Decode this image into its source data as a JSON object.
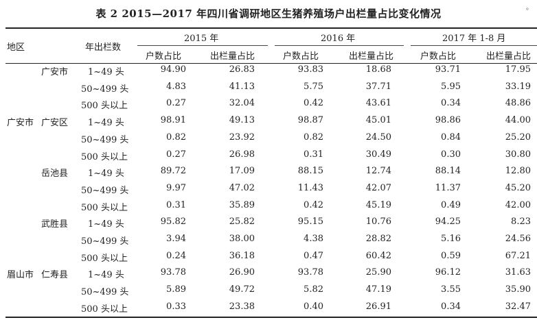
{
  "title": "表 2  2015—2017 年四川省调研地区生猪养殖场户出栏量占比变化情况",
  "corner_mark": "。",
  "headers": {
    "region": "地区",
    "scale": "年出栏数",
    "year2015": "2015 年",
    "year2016": "2016 年",
    "year2017": "2017 年 1-8 月",
    "household_share": "户数占比",
    "output_share": "出栏量占比"
  },
  "cities": [
    "广安市",
    "眉山市"
  ],
  "counties": [
    "广安市",
    "广安区",
    "岳池县",
    "武胜县",
    "仁寿县"
  ],
  "rows": [
    {
      "scale": "1~49 头",
      "v": [
        "94.90",
        "26.83",
        "93.83",
        "18.68",
        "93.71",
        "17.95"
      ]
    },
    {
      "scale": "50~499 头",
      "v": [
        "4.83",
        "41.13",
        "5.75",
        "37.71",
        "5.95",
        "33.19"
      ]
    },
    {
      "scale": "500 头以上",
      "v": [
        "0.27",
        "32.04",
        "0.42",
        "43.61",
        "0.34",
        "48.86"
      ]
    },
    {
      "scale": "1~49 头",
      "v": [
        "98.91",
        "49.13",
        "98.87",
        "45.01",
        "98.86",
        "44.00"
      ]
    },
    {
      "scale": "50~499 头",
      "v": [
        "0.82",
        "23.92",
        "0.82",
        "24.50",
        "0.84",
        "25.20"
      ]
    },
    {
      "scale": "500 头以上",
      "v": [
        "0.27",
        "26.98",
        "0.31",
        "30.49",
        "0.30",
        "30.80"
      ]
    },
    {
      "scale": "1~49 头",
      "v": [
        "89.72",
        "17.09",
        "88.15",
        "12.74",
        "88.14",
        "12.80"
      ]
    },
    {
      "scale": "50~499 头",
      "v": [
        "9.97",
        "47.02",
        "11.43",
        "42.07",
        "11.37",
        "45.20"
      ]
    },
    {
      "scale": "500 头以上",
      "v": [
        "0.31",
        "35.89",
        "0.42",
        "45.19",
        "0.49",
        "42.00"
      ]
    },
    {
      "scale": "1~49 头",
      "v": [
        "95.82",
        "25.82",
        "95.15",
        "10.76",
        "94.25",
        "8.23"
      ]
    },
    {
      "scale": "50~499 头",
      "v": [
        "3.94",
        "38.00",
        "4.38",
        "28.82",
        "5.16",
        "24.56"
      ]
    },
    {
      "scale": "500 头以上",
      "v": [
        "0.24",
        "36.18",
        "0.47",
        "60.42",
        "0.59",
        "67.21"
      ]
    },
    {
      "scale": "1~49 头",
      "v": [
        "93.78",
        "26.90",
        "93.78",
        "25.90",
        "96.12",
        "31.63"
      ]
    },
    {
      "scale": "50~499 头",
      "v": [
        "5.89",
        "49.72",
        "5.82",
        "47.19",
        "3.55",
        "35.90"
      ]
    },
    {
      "scale": "500 头以上",
      "v": [
        "0.33",
        "23.38",
        "0.40",
        "26.91",
        "0.34",
        "32.47"
      ]
    }
  ]
}
